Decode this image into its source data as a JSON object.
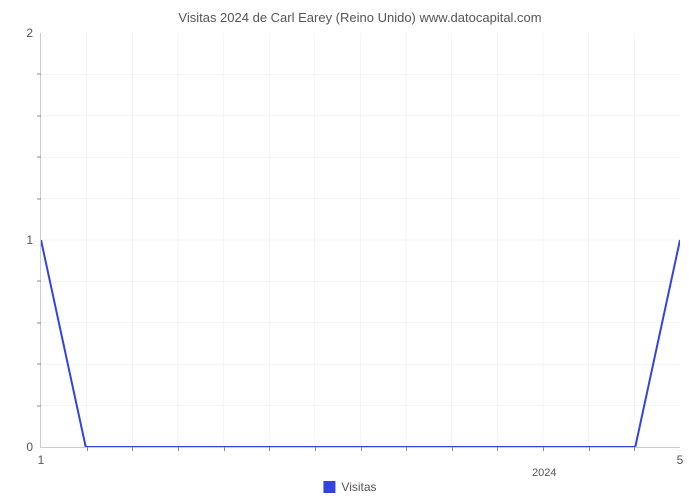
{
  "chart": {
    "type": "line",
    "title": "Visitas 2024 de Carl Earey (Reino Unido) www.datocapital.com",
    "title_fontsize": 13,
    "title_color": "#555555",
    "background_color": "#ffffff",
    "grid_color": "#dddddd",
    "axis_color": "#cccccc",
    "tick_label_color": "#555555",
    "tick_label_fontsize": 12,
    "y_axis": {
      "min": 0,
      "max": 2,
      "major_ticks": [
        0,
        1,
        2
      ],
      "minor_ticks_per_interval": 4
    },
    "x_axis": {
      "min": 1,
      "max": 5,
      "major_tick_labels": [
        "1",
        "5"
      ],
      "major_tick_positions": [
        1,
        5
      ],
      "minor_ticks_per_interval": 4,
      "date_label": "2024",
      "date_label_position": 4.15
    },
    "grid": {
      "vertical_count": 14,
      "horizontal_tracks": 10
    },
    "series": {
      "label": "Visitas",
      "color": "#3344dd",
      "line_width": 2,
      "points": [
        {
          "x": 1.0,
          "y": 1.0
        },
        {
          "x": 1.28,
          "y": 0.0
        },
        {
          "x": 4.72,
          "y": 0.0
        },
        {
          "x": 5.0,
          "y": 1.0
        }
      ]
    },
    "legend": {
      "label": "Visitas",
      "swatch_color": "#3344dd",
      "text_color": "#555555",
      "fontsize": 12
    }
  }
}
